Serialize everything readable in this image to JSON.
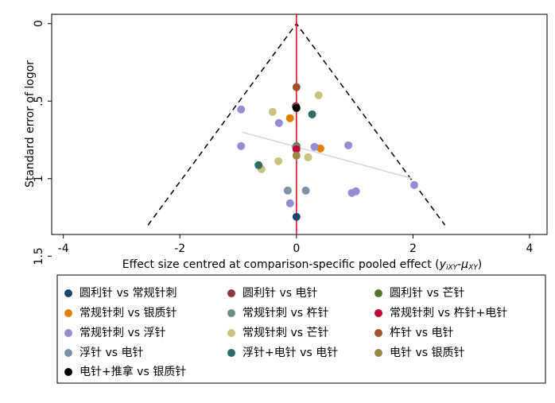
{
  "chart_data": {
    "type": "scatter",
    "y_label": "Standard error of logor",
    "x_label": [
      "Effect size centred at comparison-specific pooled effect (",
      "y",
      "iXY",
      "-μ",
      "XY",
      ")"
    ],
    "xlim": [
      -4.2,
      4.3
    ],
    "xticks": [
      -4,
      -2,
      0,
      2,
      4
    ],
    "ylim": [
      -0.06,
      1.36
    ],
    "y_reversed": true,
    "yticks": [
      0,
      {
        "value": 0.5,
        "label": ".5"
      },
      1,
      1.5
    ],
    "funnel": {
      "z": 1.96,
      "se_max": 1.3,
      "color": "#000000"
    },
    "zero_line_color": "#e8000b",
    "fit_line": {
      "x": [
        -0.93,
        2.0
      ],
      "y": [
        0.7,
        1.0
      ],
      "color": "#c6dde6"
    },
    "series": [
      {
        "name": "圆利针 vs 常规针刺",
        "color": "#1a476f",
        "x": [
          0
        ],
        "values": [
          1.246
        ]
      },
      {
        "name": "圆利针 vs 电针",
        "color": "#90353b",
        "x": [
          -0.01
        ],
        "values": [
          0.533
        ]
      },
      {
        "name": "圆利针 vs 芒针",
        "color": "#55752f",
        "x": [
          0
        ],
        "values": [
          0.79
        ]
      },
      {
        "name": "常规针刺 vs 银质针",
        "color": "#e37e00",
        "x": [
          -0.11,
          0.41
        ],
        "values": [
          0.61,
          0.805
        ]
      },
      {
        "name": "常规针刺 vs 杵针",
        "color": "#6e8e84",
        "x": [
          -0.01
        ],
        "values": [
          0.795
        ]
      },
      {
        "name": "常规针刺 vs 杵针+电针",
        "color": "#c10534",
        "x": [
          0
        ],
        "values": [
          0.81
        ]
      },
      {
        "name": "常规针刺 vs 浮针",
        "color": "#938dd2",
        "x": [
          -0.95,
          -0.3,
          -0.95,
          0.31,
          0.89,
          -0.11,
          0.95,
          1.02,
          2.02
        ],
        "values": [
          0.554,
          0.641,
          0.79,
          0.795,
          0.785,
          1.159,
          1.092,
          1.082,
          1.041
        ]
      },
      {
        "name": "常规针刺 vs 芒针",
        "color": "#cac27e",
        "x": [
          -0.41,
          0.38,
          0.2,
          -0.31,
          -0.6
        ],
        "values": [
          0.569,
          0.462,
          0.862,
          0.887,
          0.938
        ]
      },
      {
        "name": "杵针 vs 电针",
        "color": "#a0522d",
        "x": [
          0
        ],
        "values": [
          0.41
        ]
      },
      {
        "name": "浮针 vs 电针",
        "color": "#7b92a8",
        "x": [
          -0.15,
          0.16
        ],
        "values": [
          1.077,
          1.077
        ]
      },
      {
        "name": "浮针+电针 vs 电针",
        "color": "#2d6d66",
        "x": [
          0.27,
          -0.65
        ],
        "values": [
          0.585,
          0.913
        ]
      },
      {
        "name": "电针 vs 银质针",
        "color": "#9c8847",
        "x": [
          0
        ],
        "values": [
          0.851
        ]
      },
      {
        "name": "电针+推拿 vs 银质针",
        "color": "#000000",
        "x": [
          0
        ],
        "values": [
          0.544
        ]
      }
    ]
  }
}
